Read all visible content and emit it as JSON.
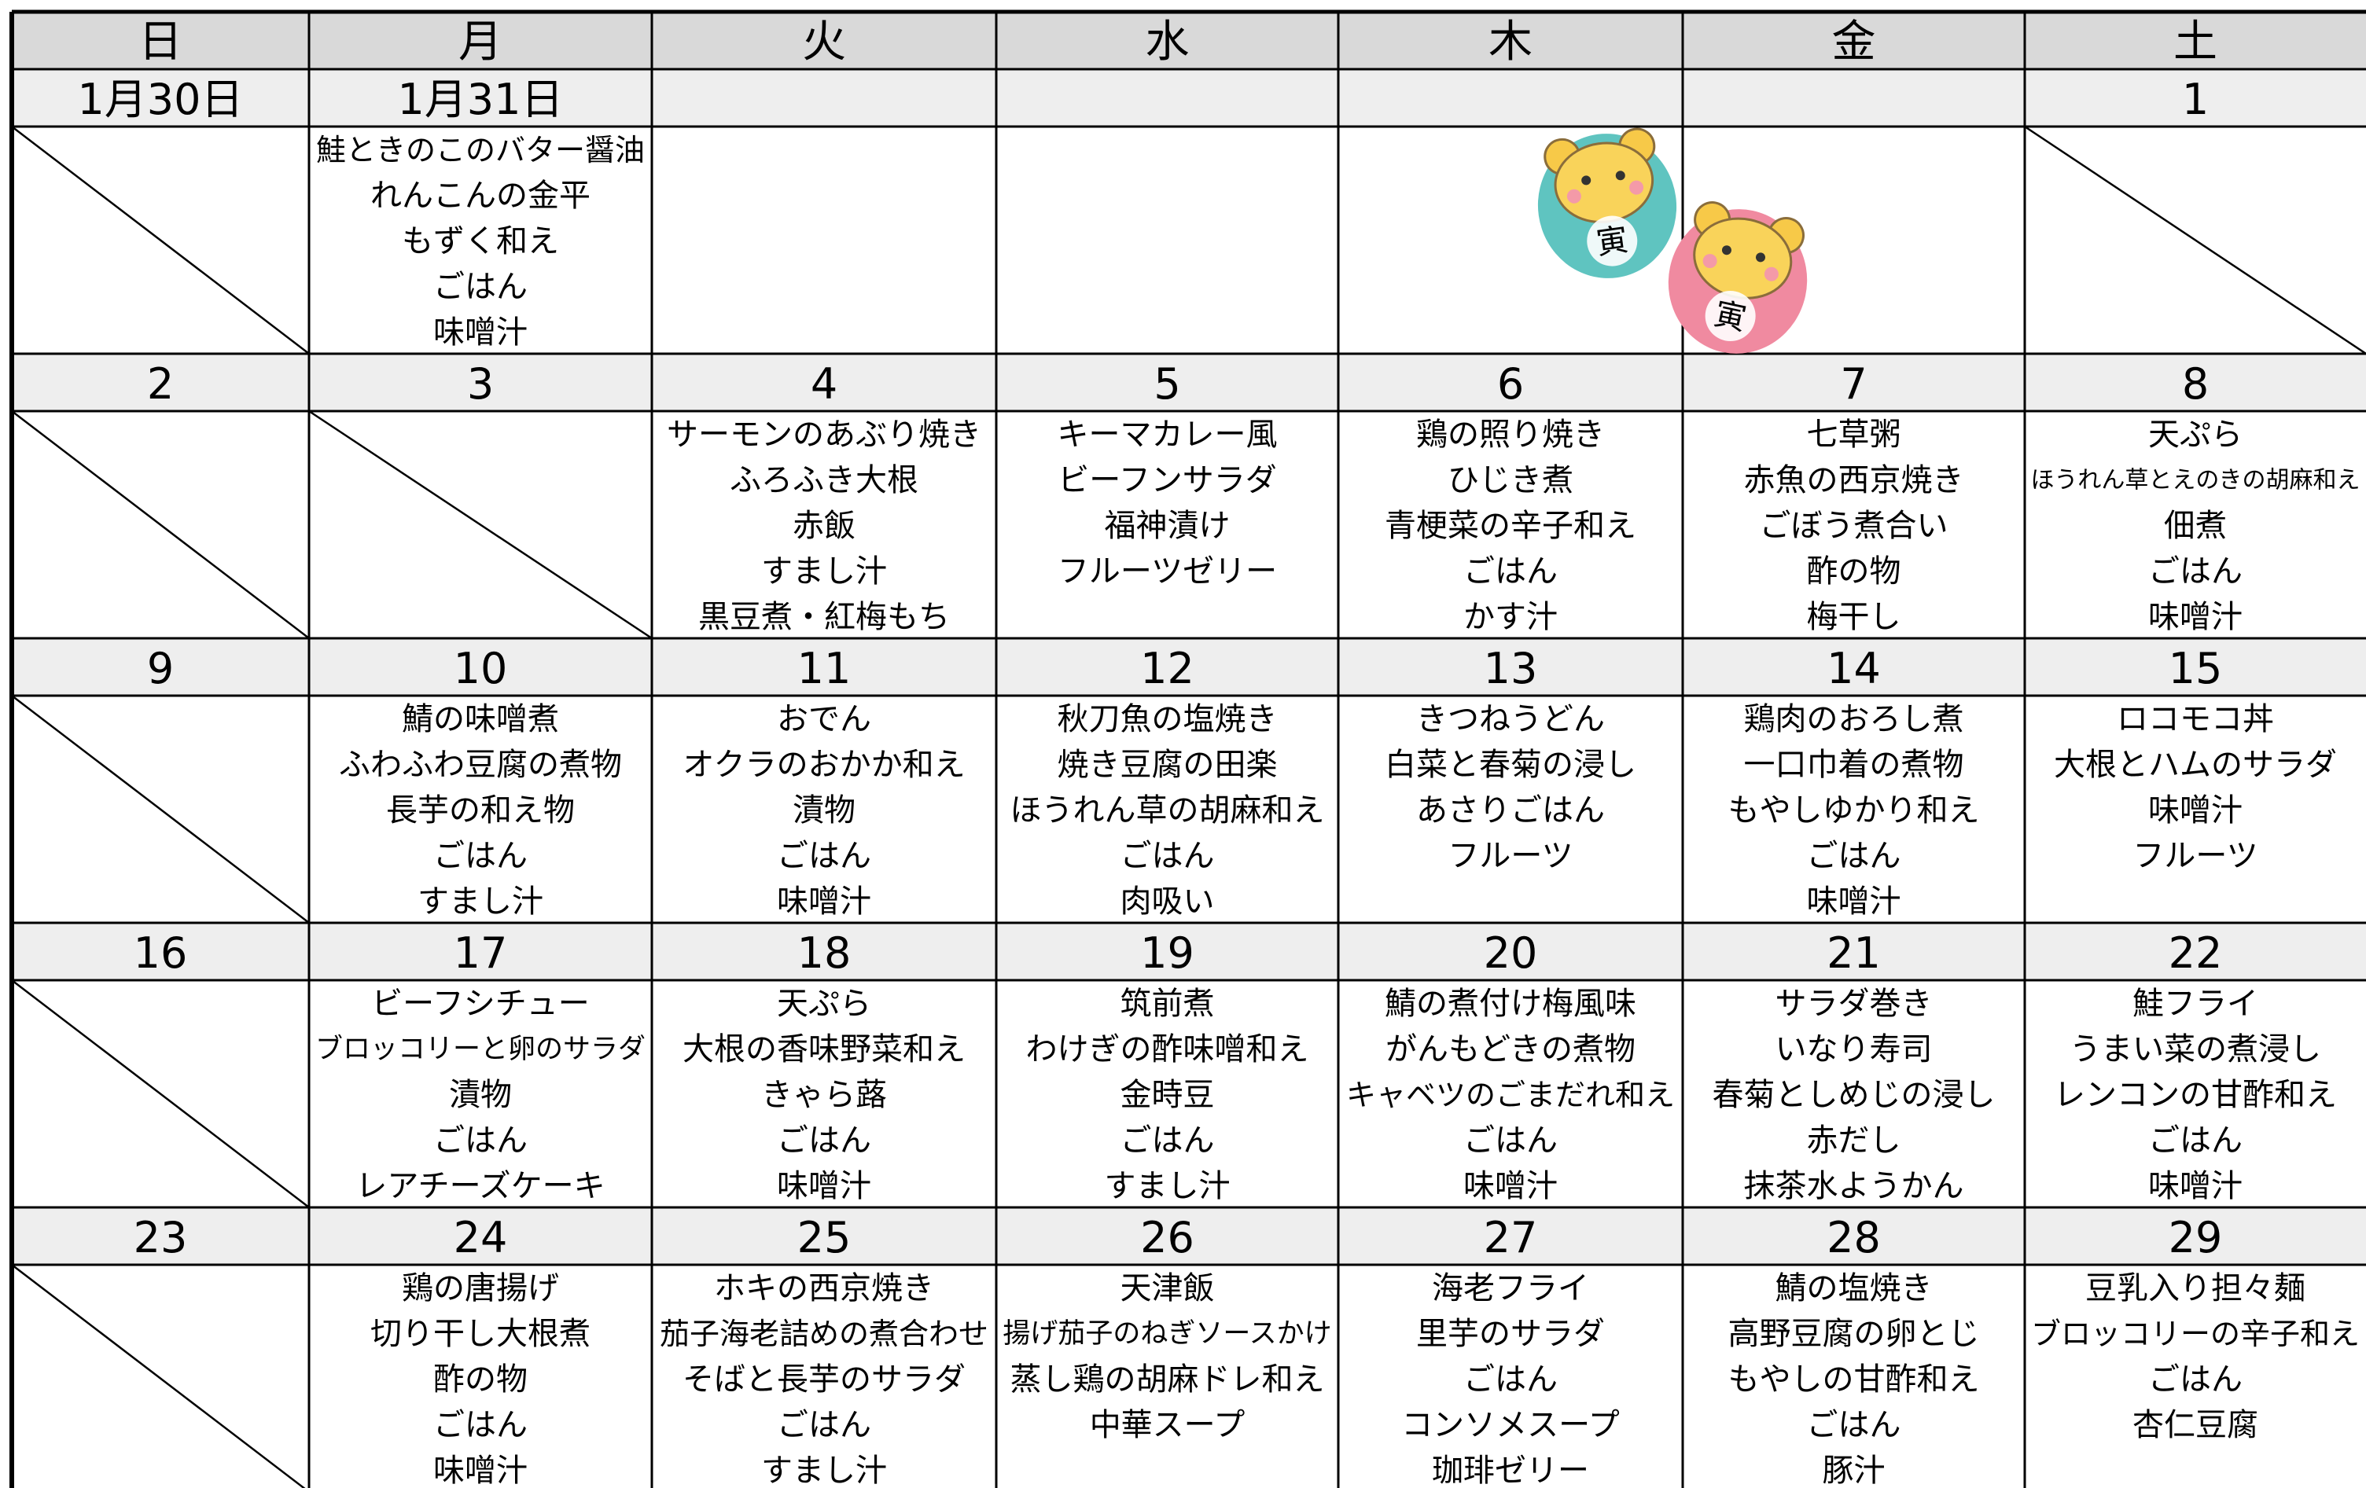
{
  "weekdays": [
    "日",
    "月",
    "火",
    "水",
    "木",
    "金",
    "土"
  ],
  "weeks": [
    [
      {
        "date": "1月30日"
      },
      {
        "date": "1月31日",
        "menu": [
          "鮭ときのこのバター醤油",
          "れんこんの金平",
          "もずく和え",
          "ごはん",
          "味噌汁"
        ]
      },
      {
        "date": null
      },
      {
        "date": null
      },
      {
        "date": null
      },
      {
        "date": null
      },
      {
        "date": 1
      }
    ],
    [
      {
        "date": 2
      },
      {
        "date": 3
      },
      {
        "date": 4,
        "menu": [
          "サーモンのあぶり焼き",
          "ふろふき大根",
          "赤飯",
          "すまし汁",
          "黒豆煮・紅梅もち"
        ]
      },
      {
        "date": 5,
        "menu": [
          "キーマカレー風",
          "ビーフンサラダ",
          "福神漬け",
          "フルーツゼリー"
        ]
      },
      {
        "date": 6,
        "menu": [
          "鶏の照り焼き",
          "ひじき煮",
          "青梗菜の辛子和え",
          "ごはん",
          "かす汁"
        ]
      },
      {
        "date": 7,
        "menu": [
          "七草粥",
          "赤魚の西京焼き",
          "ごぼう煮合い",
          "酢の物",
          "梅干し"
        ]
      },
      {
        "date": 8,
        "menu": [
          "天ぷら",
          "ほうれん草とえのきの胡麻和え",
          "佃煮",
          "ごはん",
          "味噌汁"
        ]
      }
    ],
    [
      {
        "date": 9
      },
      {
        "date": 10,
        "menu": [
          "鯖の味噌煮",
          "ふわふわ豆腐の煮物",
          "長芋の和え物",
          "ごはん",
          "すまし汁"
        ]
      },
      {
        "date": 11,
        "menu": [
          "おでん",
          "オクラのおかか和え",
          "漬物",
          "ごはん",
          "味噌汁"
        ]
      },
      {
        "date": 12,
        "menu": [
          "秋刀魚の塩焼き",
          "焼き豆腐の田楽",
          "ほうれん草の胡麻和え",
          "ごはん",
          "肉吸い"
        ]
      },
      {
        "date": 13,
        "menu": [
          "きつねうどん",
          "白菜と春菊の浸し",
          "あさりごはん",
          "フルーツ"
        ]
      },
      {
        "date": 14,
        "menu": [
          "鶏肉のおろし煮",
          "一口巾着の煮物",
          "もやしゆかり和え",
          "ごはん",
          "味噌汁"
        ]
      },
      {
        "date": 15,
        "menu": [
          "ロコモコ丼",
          "大根とハムのサラダ",
          "味噌汁",
          "フルーツ"
        ]
      }
    ],
    [
      {
        "date": 16
      },
      {
        "date": 17,
        "menu": [
          "ビーフシチュー",
          "ブロッコリーと卵のサラダ",
          "漬物",
          "ごはん",
          "レアチーズケーキ"
        ]
      },
      {
        "date": 18,
        "menu": [
          "天ぷら",
          "大根の香味野菜和え",
          "きゃら蕗",
          "ごはん",
          "味噌汁"
        ]
      },
      {
        "date": 19,
        "menu": [
          "筑前煮",
          "わけぎの酢味噌和え",
          "金時豆",
          "ごはん",
          "すまし汁"
        ]
      },
      {
        "date": 20,
        "menu": [
          "鯖の煮付け梅風味",
          "がんもどきの煮物",
          "キャベツのごまだれ和え",
          "ごはん",
          "味噌汁"
        ]
      },
      {
        "date": 21,
        "menu": [
          "サラダ巻き",
          "いなり寿司",
          "春菊としめじの浸し",
          "赤だし",
          "抹茶水ようかん"
        ]
      },
      {
        "date": 22,
        "menu": [
          "鮭フライ",
          "うまい菜の煮浸し",
          "レンコンの甘酢和え",
          "ごはん",
          "味噌汁"
        ]
      }
    ],
    [
      {
        "date": 23
      },
      {
        "date": 24,
        "menu": [
          "鶏の唐揚げ",
          "切り干し大根煮",
          "酢の物",
          "ごはん",
          "味噌汁"
        ]
      },
      {
        "date": 25,
        "menu": [
          "ホキの西京焼き",
          "茄子海老詰めの煮合わせ",
          "そばと長芋のサラダ",
          "ごはん",
          "すまし汁"
        ]
      },
      {
        "date": 26,
        "menu": [
          "天津飯",
          "揚げ茄子のねぎソースかけ",
          "蒸し鶏の胡麻ドレ和え",
          "中華スープ"
        ]
      },
      {
        "date": 27,
        "menu": [
          "海老フライ",
          "里芋のサラダ",
          "ごはん",
          "コンソメスープ",
          "珈琲ゼリー"
        ]
      },
      {
        "date": 28,
        "menu": [
          "鯖の塩焼き",
          "高野豆腐の卵とじ",
          "もやしの甘酢和え",
          "ごはん",
          "豚汁"
        ]
      },
      {
        "date": 29,
        "menu": [
          "豆乳入り担々麺",
          "ブロッコリーの辛子和え",
          "ごはん",
          "杏仁豆腐"
        ]
      }
    ]
  ],
  "stickers": [
    {
      "label": "寅"
    },
    {
      "label": "寅"
    }
  ]
}
